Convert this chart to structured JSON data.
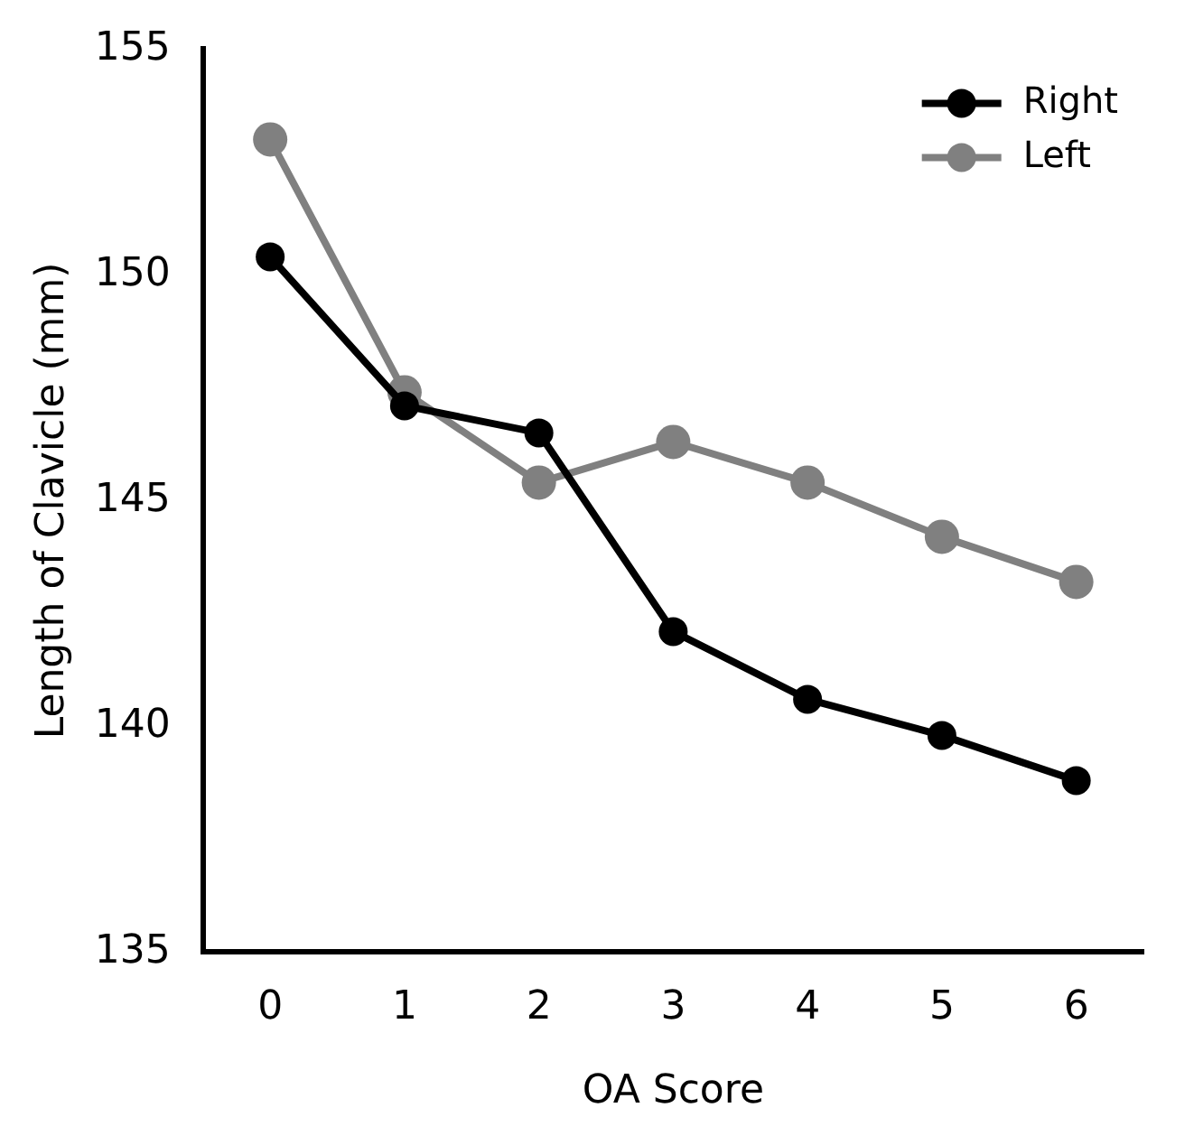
{
  "chart_data": {
    "type": "line",
    "xlabel": "OA Score",
    "ylabel": "Length of Clavicle (mm)",
    "categories": [
      "0",
      "1",
      "2",
      "3",
      "4",
      "5",
      "6"
    ],
    "series": [
      {
        "name": "Right",
        "color": "#000000",
        "values": [
          150.4,
          147.1,
          146.5,
          142.1,
          140.6,
          139.8,
          138.8
        ]
      },
      {
        "name": "Left",
        "color": "#808080",
        "values": [
          153.0,
          147.4,
          145.4,
          146.3,
          145.4,
          144.2,
          143.2
        ]
      }
    ],
    "ylim": [
      135,
      155
    ],
    "yticks": [
      135,
      140,
      145,
      150,
      155
    ],
    "marker": "circle",
    "line_style": "solid",
    "legend": "top right",
    "grid": false
  }
}
